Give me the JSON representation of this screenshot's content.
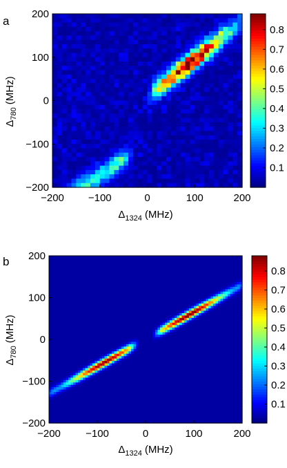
{
  "chart_data": [
    {
      "type": "heatmap",
      "panel_label": "a",
      "xlabel": {
        "symbol": "Δ",
        "sub": "1324",
        "unit": "(MHz)"
      },
      "ylabel": {
        "symbol": "Δ",
        "sub": "780",
        "unit": "(MHz)"
      },
      "xlim": [
        -200,
        200
      ],
      "ylim": [
        -200,
        200
      ],
      "xticks": [
        -200,
        -100,
        0,
        100,
        200
      ],
      "yticks": [
        -200,
        -100,
        0,
        100,
        200
      ],
      "colorbar": {
        "min": 0,
        "max": 0.88,
        "ticks": [
          0.1,
          0.2,
          0.3,
          0.4,
          0.5,
          0.6,
          0.7,
          0.8
        ],
        "colormap": "jet"
      },
      "features": [
        {
          "kind": "noisy-diagonal-band",
          "x_range": [
            -200,
            -40
          ],
          "y_at_x0": -100,
          "slope": 0.72,
          "peak": 0.32
        },
        {
          "kind": "noisy-diagonal-band",
          "x_range": [
            10,
            200
          ],
          "y_at_x0": 10,
          "slope": 0.85,
          "peak": 0.85,
          "peak_at_x": 90
        }
      ],
      "grid": false
    },
    {
      "type": "heatmap",
      "panel_label": "b",
      "xlabel": {
        "symbol": "Δ",
        "sub": "1324",
        "unit": "(MHz)"
      },
      "ylabel": {
        "symbol": "Δ",
        "sub": "780",
        "unit": "(MHz)"
      },
      "xlim": [
        -200,
        200
      ],
      "ylim": [
        -200,
        200
      ],
      "xticks": [
        -200,
        -100,
        0,
        100,
        200
      ],
      "yticks": [
        -200,
        -100,
        0,
        100,
        200
      ],
      "colorbar": {
        "min": 0,
        "max": 0.88,
        "ticks": [
          0.1,
          0.2,
          0.3,
          0.4,
          0.5,
          0.6,
          0.7,
          0.8
        ],
        "colormap": "jet"
      },
      "features": [
        {
          "kind": "smooth-diagonal-band",
          "x_range": [
            -200,
            -25
          ],
          "y_at_x0": 0,
          "slope": 0.65,
          "peak": 0.85,
          "peak_at_x": -85
        },
        {
          "kind": "smooth-diagonal-band",
          "x_range": [
            25,
            200
          ],
          "y_at_x0": 0,
          "slope": 0.65,
          "peak": 0.88,
          "peak_at_x": 90
        }
      ],
      "grid": false
    }
  ]
}
